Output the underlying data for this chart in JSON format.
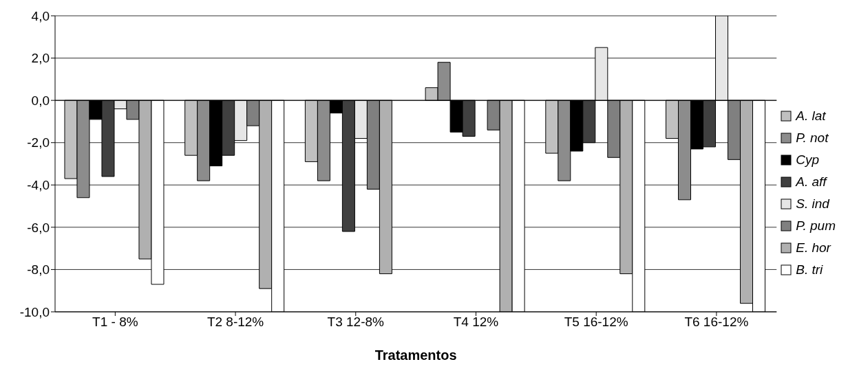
{
  "chart_data": {
    "type": "bar",
    "xlabel": "Tratamentos",
    "categories": [
      "T1 - 8%",
      "T2 8-12%",
      "T3 12-8%",
      "T4 12%",
      "T5 16-12%",
      "T6 16-12%"
    ],
    "series": [
      {
        "name": "A. lat",
        "color": "#c0c0c0",
        "values": [
          -3.7,
          -2.6,
          -2.9,
          0.6,
          -2.5,
          -1.8
        ]
      },
      {
        "name": "P. not",
        "color": "#8c8c8c",
        "values": [
          -4.6,
          -3.8,
          -3.8,
          1.8,
          -3.8,
          -4.7
        ]
      },
      {
        "name": "Cyp",
        "color": "#000000",
        "values": [
          -0.9,
          -3.1,
          -0.6,
          -1.5,
          -2.4,
          -2.3
        ]
      },
      {
        "name": "A. aff",
        "color": "#404040",
        "values": [
          -3.6,
          -2.6,
          -6.2,
          -1.7,
          -2.0,
          -2.2
        ]
      },
      {
        "name": "S. ind",
        "color": "#e6e6e6",
        "values": [
          -0.4,
          -1.9,
          -1.8,
          0,
          2.5,
          4.0
        ]
      },
      {
        "name": "P. pum",
        "color": "#808080",
        "values": [
          -0.9,
          -1.2,
          -4.2,
          -1.4,
          -2.7,
          -2.8
        ]
      },
      {
        "name": "E. hor",
        "color": "#b0b0b0",
        "values": [
          -7.5,
          -8.9,
          -8.2,
          -10,
          -8.2,
          -9.6
        ]
      },
      {
        "name": "B. tri",
        "color": "#ffffff",
        "values": [
          -8.7,
          -10,
          0,
          -10,
          -10,
          -10
        ]
      }
    ],
    "ylim": [
      -10,
      4
    ],
    "yticks": [
      {
        "value": -10,
        "label": "-10,0"
      },
      {
        "value": -8,
        "label": "-8,0"
      },
      {
        "value": -6,
        "label": "-6,0"
      },
      {
        "value": -4,
        "label": "-4,0"
      },
      {
        "value": -2,
        "label": "-2,0"
      },
      {
        "value": 0,
        "label": "0,0"
      },
      {
        "value": 2,
        "label": "2,0"
      },
      {
        "value": 4,
        "label": "4,0"
      }
    ],
    "grid": "y",
    "legend": "right"
  }
}
